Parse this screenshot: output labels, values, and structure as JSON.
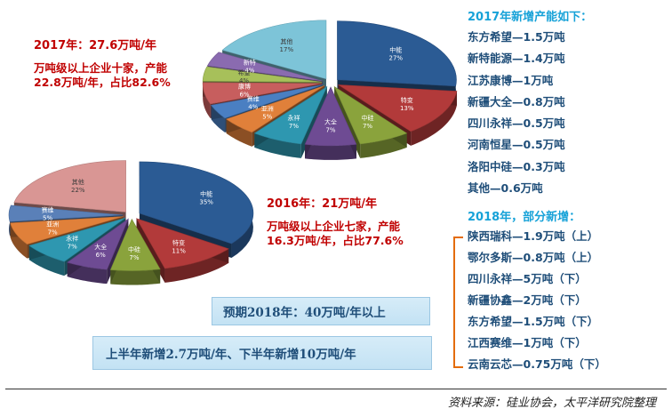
{
  "chart_data": [
    {
      "type": "pie",
      "categories": [
        "中能",
        "特变",
        "中硅",
        "大全",
        "永祥",
        "亚洲",
        "赛维",
        "康博",
        "希望",
        "新特",
        "其他"
      ],
      "values": [
        27,
        13,
        7,
        7,
        7,
        5,
        4,
        6,
        4,
        4,
        17
      ],
      "value_labels": [
        "27%",
        "13%",
        "7%",
        "7%",
        "7%",
        "5%",
        "4%",
        "6%",
        "4%",
        "4%",
        "17%"
      ],
      "colors": [
        "#2b5b94",
        "#b23a3a",
        "#8aa33c",
        "#6e4b93",
        "#2e97b0",
        "#e0803a",
        "#4a7fc2",
        "#c75e5e",
        "#a7c05a",
        "#8a6bb0",
        "#7dc4d8"
      ]
    },
    {
      "type": "pie",
      "categories": [
        "中能",
        "特变",
        "中硅",
        "大全",
        "永祥",
        "亚洲",
        "赛维",
        "其他"
      ],
      "values": [
        35,
        11,
        7,
        6,
        7,
        7,
        5,
        22
      ],
      "value_labels": [
        "35%",
        "11%",
        "7%",
        "6%",
        "7%",
        "7%",
        "5%",
        "22%"
      ],
      "colors": [
        "#2b5b94",
        "#b23a3a",
        "#8aa33c",
        "#6e4b93",
        "#2e97b0",
        "#e0803a",
        "#5a80b8",
        "#d99694"
      ]
    }
  ],
  "callout_2017": {
    "head": "2017年：27.6万吨/年",
    "line1": "万吨级以上企业十家，产能",
    "line2": "22.8万吨/年，占比82.6%"
  },
  "callout_2016": {
    "head": "2016年：21万吨/年",
    "line1": "万吨级以上企业七家，产能",
    "line2": "16.3万吨/年，占比77.6%"
  },
  "list_2017_title": "2017年新增产能如下：",
  "list_2017": [
    "东方希望—1.5万吨",
    "新特能源—1.4万吨",
    "江苏康博—1万吨",
    "新疆大全—0.8万吨",
    "四川永祥—0.5万吨",
    "河南恒星—0.5万吨",
    "洛阳中硅—0.3万吨",
    "其他—0.6万吨"
  ],
  "list_2018_title": "2018年，部分新增：",
  "list_2018": [
    "陕西瑞科—1.9万吨（上）",
    "鄂尔多斯—0.8万吨（上）",
    "四川永祥—5万吨（下）",
    "新疆协鑫—2万吨（下）",
    "东方希望—1.5万吨（下）",
    "江西赛维—1万吨（下）",
    "云南云芯—0.75万吨（下）"
  ],
  "forecast_box": "预期2018年：40万吨/年以上",
  "halfyear_box": "上半年新增2.7万吨/年、下半年新增10万吨/年",
  "footer": "资料来源：硅业协会，太平洋研究院整理"
}
